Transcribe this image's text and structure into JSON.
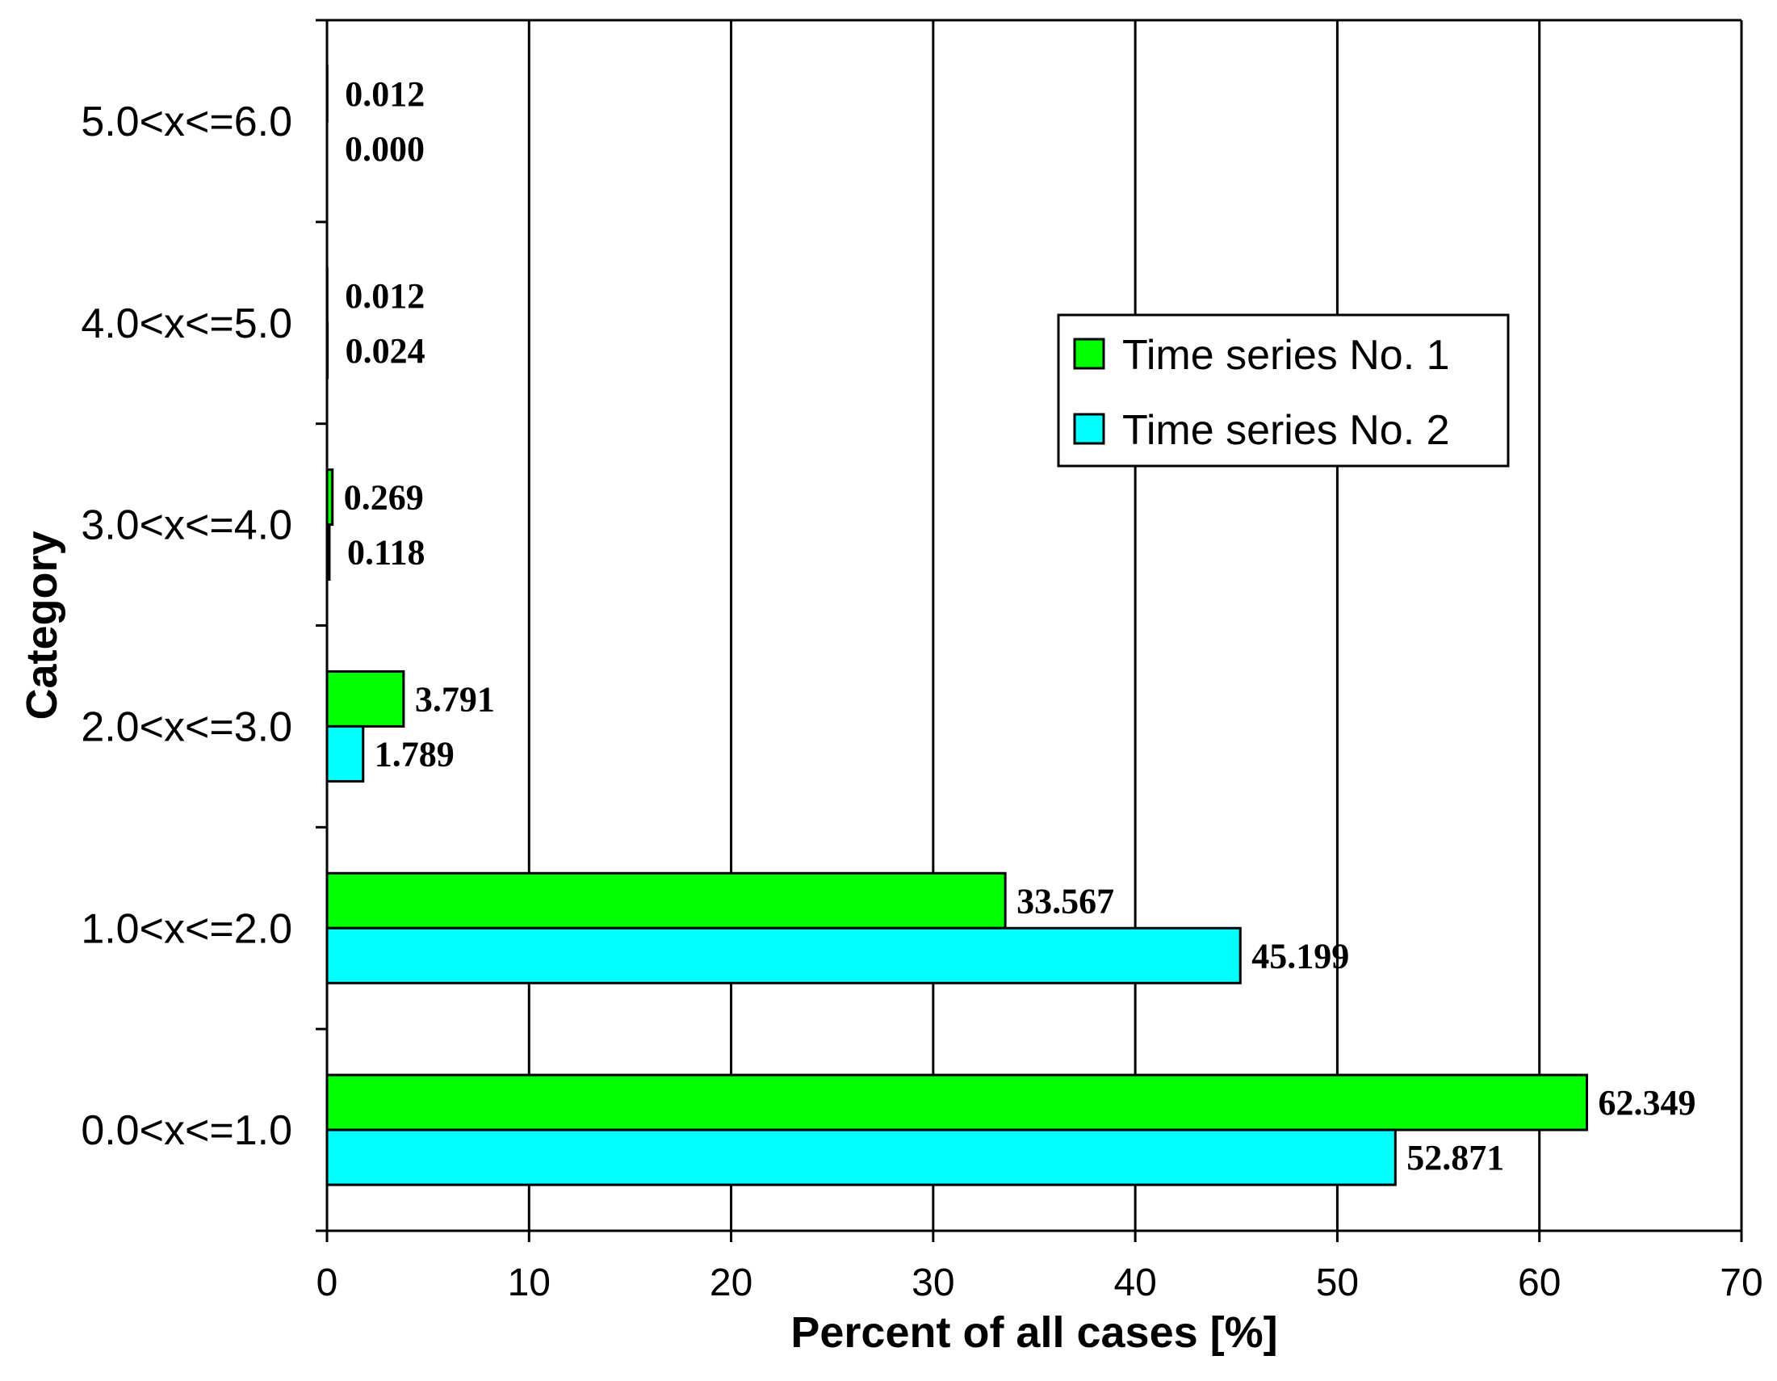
{
  "chart_data": {
    "type": "bar",
    "orientation": "horizontal",
    "title": "",
    "xlabel": "Percent of all cases [%]",
    "ylabel": "Category",
    "xlim": [
      0,
      70
    ],
    "xticks": [
      0,
      10,
      20,
      30,
      40,
      50,
      60,
      70
    ],
    "grid": "vertical",
    "legend_position": "top-right",
    "categories": [
      "0.0<x<=1.0",
      "1.0<x<=2.0",
      "2.0<x<=3.0",
      "3.0<x<=4.0",
      "4.0<x<=5.0",
      "5.0<x<=6.0"
    ],
    "series": [
      {
        "name": "Time series No. 1",
        "color": "#00ff00",
        "values": [
          62.349,
          33.567,
          3.791,
          0.269,
          0.012,
          0.012
        ],
        "labels": [
          "62.349",
          "33.567",
          "3.791",
          "0.269",
          "0.012",
          "0.012"
        ]
      },
      {
        "name": "Time series No. 2",
        "color": "#00ffff",
        "values": [
          52.871,
          45.199,
          1.789,
          0.118,
          0.024,
          0.0
        ],
        "labels": [
          "52.871",
          "45.199",
          "1.789",
          "0.118",
          "0.024",
          "0.000"
        ]
      }
    ]
  }
}
